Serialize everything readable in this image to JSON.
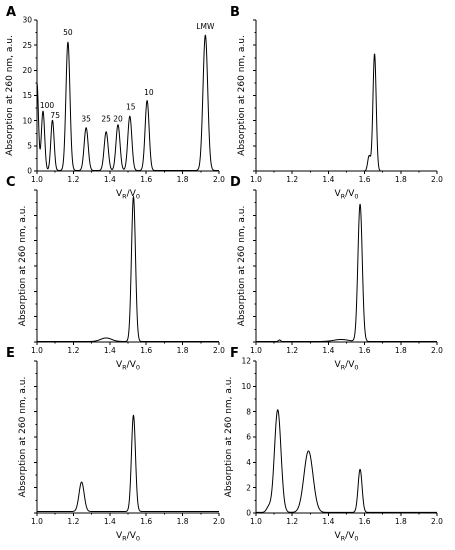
{
  "chart_data": [
    {
      "panel": "A",
      "type": "line",
      "xlabel": "VR/V0",
      "ylabel": "Absorption at 260 nm, a.u.",
      "xlim": [
        1.0,
        2.0
      ],
      "ylim": [
        0,
        30
      ],
      "xticks": [
        "1.0",
        "1.2",
        "1.4",
        "1.6",
        "1.8",
        "2.0"
      ],
      "yticks": [
        "0",
        "5",
        "10",
        "15",
        "20",
        "25",
        "30"
      ],
      "baseline": 0.1,
      "start": {
        "x": 1.0,
        "y": 17.5,
        "width": 0.008
      },
      "peaks": [
        {
          "x": 1.033,
          "height": 11.8,
          "width": 0.009
        },
        {
          "x": 1.085,
          "height": 10.0,
          "width": 0.009
        },
        {
          "x": 1.17,
          "height": 25.5,
          "width": 0.011
        },
        {
          "x": 1.27,
          "height": 8.5,
          "width": 0.011
        },
        {
          "x": 1.38,
          "height": 7.7,
          "width": 0.011
        },
        {
          "x": 1.445,
          "height": 9.1,
          "width": 0.011
        },
        {
          "x": 1.51,
          "height": 10.8,
          "width": 0.011
        },
        {
          "x": 1.605,
          "height": 13.9,
          "width": 0.011
        },
        {
          "x": 1.925,
          "height": 26.9,
          "width": 0.013
        }
      ],
      "annotations": [
        {
          "text": "100",
          "x": 1.055,
          "y": 12.5
        },
        {
          "text": "75",
          "x": 1.1,
          "y": 10.5
        },
        {
          "text": "50",
          "x": 1.17,
          "y": 27.0
        },
        {
          "text": "35",
          "x": 1.27,
          "y": 9.8
        },
        {
          "text": "25",
          "x": 1.38,
          "y": 9.8
        },
        {
          "text": "20",
          "x": 1.445,
          "y": 9.8
        },
        {
          "text": "15",
          "x": 1.515,
          "y": 12.2
        },
        {
          "text": "10",
          "x": 1.615,
          "y": 15.1
        },
        {
          "text": "LMW",
          "x": 1.925,
          "y": 28.2
        }
      ]
    },
    {
      "panel": "B",
      "type": "line",
      "xlabel": "VR/V0",
      "ylabel": "Absorption at 260 nm, a.u.",
      "xlim": [
        1.0,
        2.0
      ],
      "ylim": [
        0,
        30
      ],
      "xticks": [
        "1.0",
        "1.2",
        "1.4",
        "1.6",
        "1.8",
        "2.0"
      ],
      "yticks": [],
      "baseline": 0.0,
      "peaks": [
        {
          "x": 1.625,
          "height": 3.0,
          "width": 0.008
        },
        {
          "x": 1.655,
          "height": 23.3,
          "width": 0.009
        }
      ],
      "annotations": []
    },
    {
      "panel": "C",
      "type": "line",
      "xlabel": "VR/V0",
      "ylabel": "Absorption at 260 nm, a.u.",
      "xlim": [
        1.0,
        2.0
      ],
      "ylim": [
        0,
        30
      ],
      "xticks": [
        "1.0",
        "1.2",
        "1.4",
        "1.6",
        "1.8",
        "2.0"
      ],
      "yticks": [],
      "baseline": 0.1,
      "peaks": [
        {
          "x": 1.38,
          "height": 0.7,
          "width": 0.03
        },
        {
          "x": 1.53,
          "height": 28.6,
          "width": 0.011
        }
      ],
      "annotations": []
    },
    {
      "panel": "D",
      "type": "line",
      "xlabel": "VR/V0",
      "ylabel": "Absorption at 260 nm, a.u.",
      "xlim": [
        1.0,
        2.0
      ],
      "ylim": [
        0,
        30
      ],
      "xticks": [
        "1.0",
        "1.2",
        "1.4",
        "1.6",
        "1.8",
        "2.0"
      ],
      "yticks": [],
      "baseline": 0.1,
      "peaks": [
        {
          "x": 1.13,
          "height": 0.3,
          "width": 0.006
        },
        {
          "x": 1.47,
          "height": 0.4,
          "width": 0.04
        },
        {
          "x": 1.575,
          "height": 27.1,
          "width": 0.012
        }
      ],
      "annotations": []
    },
    {
      "panel": "E",
      "type": "line",
      "xlabel": "VR/V0",
      "ylabel": "Absorption at 260 nm, a.u.",
      "xlim": [
        1.0,
        2.0
      ],
      "ylim": [
        0,
        30
      ],
      "xticks": [
        "1.0",
        "1.2",
        "1.4",
        "1.6",
        "1.8",
        "2.0"
      ],
      "yticks": [],
      "baseline": 0.3,
      "peaks": [
        {
          "x": 1.245,
          "height": 5.8,
          "width": 0.014
        },
        {
          "x": 1.53,
          "height": 19.0,
          "width": 0.011
        }
      ],
      "annotations": []
    },
    {
      "panel": "F",
      "type": "line",
      "xlabel": "VR/V0",
      "ylabel": "Absorption at 260 nm, a.u.",
      "xlim": [
        1.0,
        2.0
      ],
      "ylim": [
        0,
        12
      ],
      "xticks": [
        "1.0",
        "1.2",
        "1.4",
        "1.6",
        "1.8",
        "2.0"
      ],
      "yticks": [
        "0",
        "2",
        "4",
        "6",
        "8",
        "10",
        "12"
      ],
      "baseline": 0.05,
      "peaks": [
        {
          "x": 1.07,
          "height": 0.4,
          "width": 0.012
        },
        {
          "x": 1.12,
          "height": 8.1,
          "width": 0.018
        },
        {
          "x": 1.29,
          "height": 4.85,
          "width": 0.025
        },
        {
          "x": 1.575,
          "height": 3.4,
          "width": 0.011
        }
      ],
      "annotations": []
    }
  ]
}
